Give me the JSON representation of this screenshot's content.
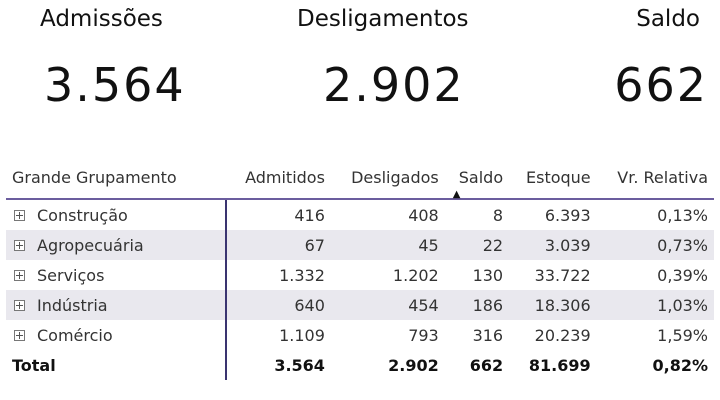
{
  "kpis": {
    "admissoes": {
      "label": "Admissões",
      "value": "3.564"
    },
    "desligamentos": {
      "label": "Desligamentos",
      "value": "2.902"
    },
    "saldo": {
      "label": "Saldo",
      "value": "662"
    }
  },
  "table": {
    "columns": [
      "Grande Grupamento",
      "Admitidos",
      "Desligados",
      "Saldo",
      "Estoque",
      "Vr. Relativa"
    ],
    "sorted_column": "Saldo",
    "sort_direction": "ascending",
    "rows": [
      [
        "Construção",
        "416",
        "408",
        "8",
        "6.393",
        "0,13%"
      ],
      [
        "Agropecuária",
        "67",
        "45",
        "22",
        "3.039",
        "0,73%"
      ],
      [
        "Serviços",
        "1.332",
        "1.202",
        "130",
        "33.722",
        "0,39%"
      ],
      [
        "Indústria",
        "640",
        "454",
        "186",
        "18.306",
        "1,03%"
      ],
      [
        "Comércio",
        "1.109",
        "793",
        "316",
        "20.239",
        "1,59%"
      ]
    ],
    "total": [
      "Total",
      "3.564",
      "2.902",
      "662",
      "81.699",
      "0,82%"
    ]
  }
}
